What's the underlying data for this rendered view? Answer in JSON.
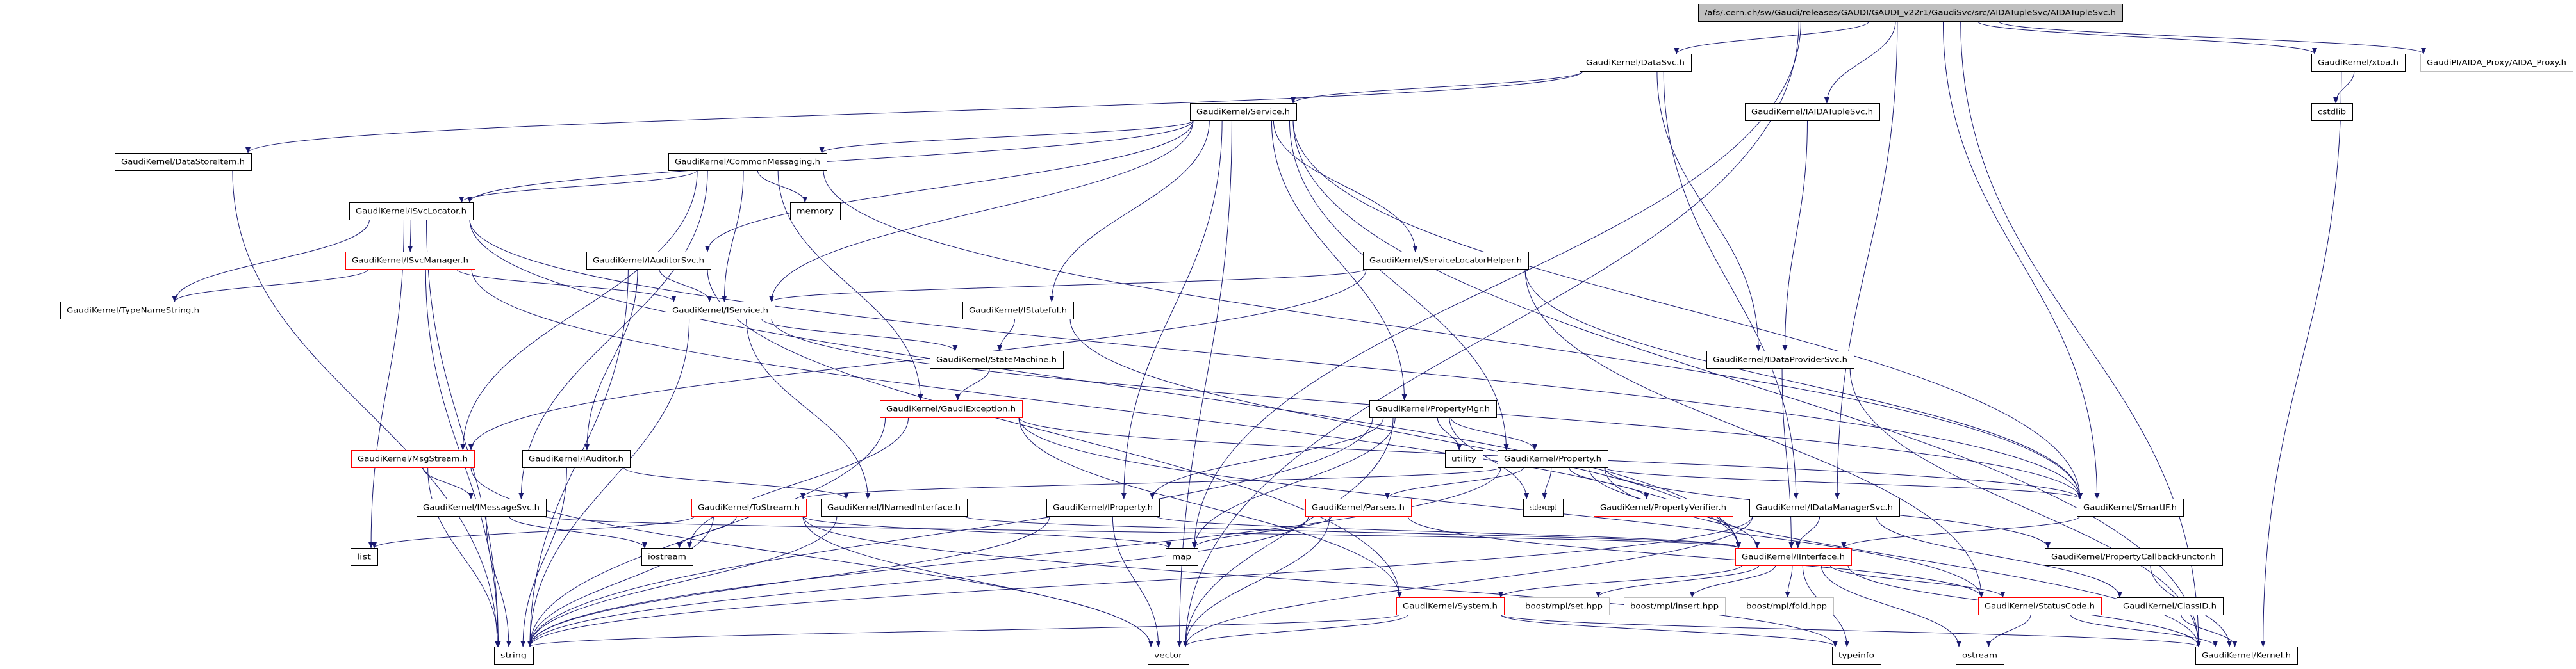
{
  "graph": {
    "edge_color": "#191970",
    "node_styles": {
      "root": {
        "fill": "#bfbfbf",
        "stroke": "#000000"
      },
      "normal": {
        "fill": "#ffffff",
        "stroke": "#000000"
      },
      "truncated": {
        "fill": "#ffffff",
        "stroke": "#ff0000"
      },
      "external": {
        "fill": "#ffffff",
        "stroke": "#bfbfbf"
      }
    },
    "nodes": [
      {
        "id": "root",
        "label": "/afs/.cern.ch/sw/Gaudi/releases/GAUDI/GAUDI_v22r1/GaudiSvc/src/AIDATupleSvc/AIDATupleSvc.h",
        "style": "root"
      },
      {
        "id": "DataSvc",
        "label": "GaudiKernel/DataSvc.h",
        "style": "normal"
      },
      {
        "id": "xtoa",
        "label": "GaudiKernel/xtoa.h",
        "style": "normal"
      },
      {
        "id": "AIDA_Proxy",
        "label": "GaudiPI/AIDA_Proxy/AIDA_Proxy.h",
        "style": "external"
      },
      {
        "id": "Service",
        "label": "GaudiKernel/Service.h",
        "style": "normal"
      },
      {
        "id": "IAIDATupleSvc",
        "label": "GaudiKernel/IAIDATupleSvc.h",
        "style": "normal"
      },
      {
        "id": "cstdlib",
        "label": "cstdlib",
        "style": "normal"
      },
      {
        "id": "DataStoreItem",
        "label": "GaudiKernel/DataStoreItem.h",
        "style": "normal"
      },
      {
        "id": "CommonMessaging",
        "label": "GaudiKernel/CommonMessaging.h",
        "style": "normal"
      },
      {
        "id": "ISvcLocator",
        "label": "GaudiKernel/ISvcLocator.h",
        "style": "normal"
      },
      {
        "id": "memory",
        "label": "memory",
        "style": "normal"
      },
      {
        "id": "ISvcManager",
        "label": "GaudiKernel/ISvcManager.h",
        "style": "truncated"
      },
      {
        "id": "IAuditorSvc",
        "label": "GaudiKernel/IAuditorSvc.h",
        "style": "normal"
      },
      {
        "id": "ServiceLocatorHelper",
        "label": "GaudiKernel/ServiceLocatorHelper.h",
        "style": "normal"
      },
      {
        "id": "TypeNameString",
        "label": "GaudiKernel/TypeNameString.h",
        "style": "normal"
      },
      {
        "id": "IService",
        "label": "GaudiKernel/IService.h",
        "style": "normal"
      },
      {
        "id": "IStateful",
        "label": "GaudiKernel/IStateful.h",
        "style": "normal"
      },
      {
        "id": "StateMachine",
        "label": "GaudiKernel/StateMachine.h",
        "style": "normal"
      },
      {
        "id": "IDataProviderSvc",
        "label": "GaudiKernel/IDataProviderSvc.h",
        "style": "normal"
      },
      {
        "id": "GaudiException",
        "label": "GaudiKernel/GaudiException.h",
        "style": "truncated"
      },
      {
        "id": "PropertyMgr",
        "label": "GaudiKernel/PropertyMgr.h",
        "style": "normal"
      },
      {
        "id": "MsgStream",
        "label": "GaudiKernel/MsgStream.h",
        "style": "truncated"
      },
      {
        "id": "IAuditor",
        "label": "GaudiKernel/IAuditor.h",
        "style": "normal"
      },
      {
        "id": "utility",
        "label": "utility",
        "style": "normal"
      },
      {
        "id": "Property",
        "label": "GaudiKernel/Property.h",
        "style": "normal"
      },
      {
        "id": "IMessageSvc",
        "label": "GaudiKernel/IMessageSvc.h",
        "style": "normal"
      },
      {
        "id": "ToStream",
        "label": "GaudiKernel/ToStream.h",
        "style": "truncated"
      },
      {
        "id": "INamedInterface",
        "label": "GaudiKernel/INamedInterface.h",
        "style": "normal"
      },
      {
        "id": "IProperty",
        "label": "GaudiKernel/IProperty.h",
        "style": "normal"
      },
      {
        "id": "Parsers",
        "label": "GaudiKernel/Parsers.h",
        "style": "truncated"
      },
      {
        "id": "stdexcept",
        "label": "stdexcept",
        "style": "normal"
      },
      {
        "id": "PropertyVerifier",
        "label": "GaudiKernel/PropertyVerifier.h",
        "style": "truncated"
      },
      {
        "id": "IDataManagerSvc",
        "label": "GaudiKernel/IDataManagerSvc.h",
        "style": "normal"
      },
      {
        "id": "SmartIF",
        "label": "GaudiKernel/SmartIF.h",
        "style": "normal"
      },
      {
        "id": "list",
        "label": "list",
        "style": "normal"
      },
      {
        "id": "iostream",
        "label": "iostream",
        "style": "normal"
      },
      {
        "id": "map",
        "label": "map",
        "style": "normal"
      },
      {
        "id": "IInterface",
        "label": "GaudiKernel/IInterface.h",
        "style": "truncated"
      },
      {
        "id": "PropertyCallbackFunctor",
        "label": "GaudiKernel/PropertyCallbackFunctor.h",
        "style": "normal"
      },
      {
        "id": "System",
        "label": "GaudiKernel/System.h",
        "style": "truncated"
      },
      {
        "id": "boost_set",
        "label": "boost/mpl/set.hpp",
        "style": "external"
      },
      {
        "id": "boost_insert",
        "label": "boost/mpl/insert.hpp",
        "style": "external"
      },
      {
        "id": "boost_fold",
        "label": "boost/mpl/fold.hpp",
        "style": "external"
      },
      {
        "id": "StatusCode",
        "label": "GaudiKernel/StatusCode.h",
        "style": "truncated"
      },
      {
        "id": "ClassID",
        "label": "GaudiKernel/ClassID.h",
        "style": "normal"
      },
      {
        "id": "string",
        "label": "string",
        "style": "normal"
      },
      {
        "id": "vector",
        "label": "vector",
        "style": "normal"
      },
      {
        "id": "typeinfo",
        "label": "typeinfo",
        "style": "normal"
      },
      {
        "id": "ostream",
        "label": "ostream",
        "style": "normal"
      },
      {
        "id": "Kernel",
        "label": "GaudiKernel/Kernel.h",
        "style": "normal"
      }
    ],
    "edges": [
      [
        "root",
        "DataSvc"
      ],
      [
        "root",
        "IAIDATupleSvc"
      ],
      [
        "root",
        "xtoa"
      ],
      [
        "root",
        "AIDA_Proxy"
      ],
      [
        "root",
        "map"
      ],
      [
        "root",
        "vector"
      ],
      [
        "root",
        "IDataManagerSvc"
      ],
      [
        "root",
        "SmartIF"
      ],
      [
        "root",
        "Kernel"
      ],
      [
        "DataSvc",
        "Service"
      ],
      [
        "DataSvc",
        "DataStoreItem"
      ],
      [
        "DataSvc",
        "IDataProviderSvc"
      ],
      [
        "DataSvc",
        "IDataManagerSvc"
      ],
      [
        "IAIDATupleSvc",
        "IDataProviderSvc"
      ],
      [
        "xtoa",
        "cstdlib"
      ],
      [
        "xtoa",
        "Kernel"
      ],
      [
        "Service",
        "CommonMessaging"
      ],
      [
        "Service",
        "ISvcLocator"
      ],
      [
        "Service",
        "IService"
      ],
      [
        "Service",
        "IAuditorSvc"
      ],
      [
        "Service",
        "IStateful"
      ],
      [
        "Service",
        "ServiceLocatorHelper"
      ],
      [
        "Service",
        "PropertyMgr"
      ],
      [
        "Service",
        "Property"
      ],
      [
        "Service",
        "IProperty"
      ],
      [
        "Service",
        "SmartIF"
      ],
      [
        "Service",
        "vector"
      ],
      [
        "Service",
        "Kernel"
      ],
      [
        "DataStoreItem",
        "string"
      ],
      [
        "CommonMessaging",
        "ISvcLocator"
      ],
      [
        "CommonMessaging",
        "memory"
      ],
      [
        "CommonMessaging",
        "IService"
      ],
      [
        "CommonMessaging",
        "MsgStream"
      ],
      [
        "CommonMessaging",
        "IMessageSvc"
      ],
      [
        "CommonMessaging",
        "GaudiException"
      ],
      [
        "CommonMessaging",
        "SmartIF"
      ],
      [
        "ISvcLocator",
        "ISvcManager"
      ],
      [
        "ISvcLocator",
        "TypeNameString"
      ],
      [
        "ISvcLocator",
        "list"
      ],
      [
        "ISvcLocator",
        "string"
      ],
      [
        "ISvcLocator",
        "SmartIF"
      ],
      [
        "ISvcLocator",
        "IInterface"
      ],
      [
        "ISvcManager",
        "TypeNameString"
      ],
      [
        "ISvcManager",
        "IService"
      ],
      [
        "ISvcManager",
        "string"
      ],
      [
        "ISvcManager",
        "IInterface"
      ],
      [
        "IAuditorSvc",
        "IService"
      ],
      [
        "IAuditorSvc",
        "IAuditor"
      ],
      [
        "IAuditorSvc",
        "string"
      ],
      [
        "IAuditorSvc",
        "System"
      ],
      [
        "IService",
        "StateMachine"
      ],
      [
        "IService",
        "INamedInterface"
      ],
      [
        "IService",
        "string"
      ],
      [
        "IService",
        "SmartIF"
      ],
      [
        "IStateful",
        "StateMachine"
      ],
      [
        "IStateful",
        "IInterface"
      ],
      [
        "ServiceLocatorHelper",
        "IService"
      ],
      [
        "ServiceLocatorHelper",
        "MsgStream"
      ],
      [
        "ServiceLocatorHelper",
        "SmartIF"
      ],
      [
        "ServiceLocatorHelper",
        "StatusCode"
      ],
      [
        "StateMachine",
        "GaudiException"
      ],
      [
        "GaudiException",
        "string"
      ],
      [
        "GaudiException",
        "iostream"
      ],
      [
        "GaudiException",
        "System"
      ],
      [
        "GaudiException",
        "StatusCode"
      ],
      [
        "GaudiException",
        "SmartIF"
      ],
      [
        "PropertyMgr",
        "Property"
      ],
      [
        "PropertyMgr",
        "IProperty"
      ],
      [
        "PropertyMgr",
        "utility"
      ],
      [
        "PropertyMgr",
        "stdexcept"
      ],
      [
        "PropertyMgr",
        "map"
      ],
      [
        "PropertyMgr",
        "vector"
      ],
      [
        "PropertyMgr",
        "string"
      ],
      [
        "Property",
        "Parsers"
      ],
      [
        "Property",
        "PropertyVerifier"
      ],
      [
        "Property",
        "stdexcept"
      ],
      [
        "Property",
        "ToStream"
      ],
      [
        "Property",
        "PropertyCallbackFunctor"
      ],
      [
        "Property",
        "SmartIF"
      ],
      [
        "Property",
        "IInterface"
      ],
      [
        "Property",
        "string"
      ],
      [
        "Property",
        "Kernel"
      ],
      [
        "MsgStream",
        "IMessageSvc"
      ],
      [
        "MsgStream",
        "string"
      ],
      [
        "MsgStream",
        "vector"
      ],
      [
        "IAuditor",
        "INamedInterface"
      ],
      [
        "IAuditor",
        "string"
      ],
      [
        "IMessageSvc",
        "iostream"
      ],
      [
        "IMessageSvc",
        "string"
      ],
      [
        "IMessageSvc",
        "IInterface"
      ],
      [
        "ToStream",
        "list"
      ],
      [
        "ToStream",
        "iostream"
      ],
      [
        "ToStream",
        "string"
      ],
      [
        "ToStream",
        "map"
      ],
      [
        "ToStream",
        "vector"
      ],
      [
        "ToStream",
        "typeinfo"
      ],
      [
        "INamedInterface",
        "IInterface"
      ],
      [
        "INamedInterface",
        "string"
      ],
      [
        "IProperty",
        "IInterface"
      ],
      [
        "IProperty",
        "string"
      ],
      [
        "IProperty",
        "vector"
      ],
      [
        "Parsers",
        "map"
      ],
      [
        "Parsers",
        "string"
      ],
      [
        "Parsers",
        "vector"
      ],
      [
        "Parsers",
        "StatusCode"
      ],
      [
        "System",
        "string"
      ],
      [
        "System",
        "vector"
      ],
      [
        "System",
        "typeinfo"
      ],
      [
        "System",
        "Kernel"
      ],
      [
        "IDataProviderSvc",
        "IInterface"
      ],
      [
        "IDataProviderSvc",
        "Kernel"
      ],
      [
        "IDataManagerSvc",
        "IInterface"
      ],
      [
        "IDataManagerSvc",
        "string"
      ],
      [
        "IDataManagerSvc",
        "vector"
      ],
      [
        "IDataManagerSvc",
        "ClassID"
      ],
      [
        "SmartIF",
        "IInterface"
      ],
      [
        "IInterface",
        "System"
      ],
      [
        "IInterface",
        "boost_set"
      ],
      [
        "IInterface",
        "boost_insert"
      ],
      [
        "IInterface",
        "boost_fold"
      ],
      [
        "IInterface",
        "typeinfo"
      ],
      [
        "IInterface",
        "ostream"
      ],
      [
        "IInterface",
        "StatusCode"
      ],
      [
        "IInterface",
        "Kernel"
      ],
      [
        "StatusCode",
        "ostream"
      ],
      [
        "StatusCode",
        "Kernel"
      ],
      [
        "ClassID",
        "Kernel"
      ],
      [
        "PropertyCallbackFunctor",
        "Kernel"
      ]
    ]
  }
}
